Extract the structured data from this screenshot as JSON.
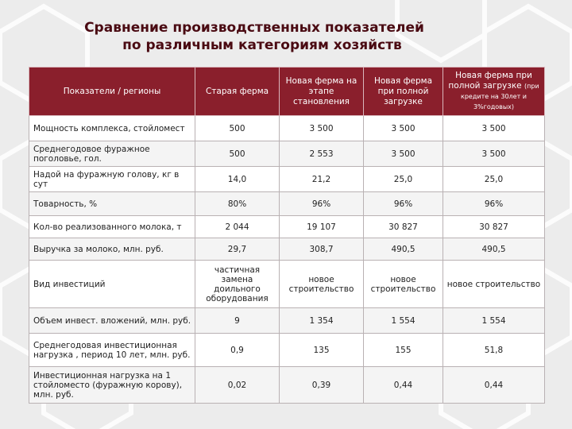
{
  "title": {
    "line1": "Сравнение производственных показателей",
    "line2": "по различным категориям хозяйств"
  },
  "table": {
    "headers": [
      "Показатели / регионы",
      "Старая ферма",
      "Новая ферма на этапе становления",
      "Новая ферма при полной загрузке",
      "Новая ферма при полной загрузке"
    ],
    "header_note": "(при кредите на 30лет и 3%годовых)",
    "rows": [
      [
        "Мощность комплекса, стойломест",
        "500",
        "3 500",
        "3 500",
        "3 500"
      ],
      [
        "Среднегодовое фуражное поголовье, гол.",
        "500",
        "2 553",
        "3 500",
        "3 500"
      ],
      [
        "Надой на фуражную голову, кг в сут",
        "14,0",
        "21,2",
        "25,0",
        "25,0"
      ],
      [
        "Товарность, %",
        "80%",
        "96%",
        "96%",
        "96%"
      ],
      [
        "Кол-во реализованного молока, т",
        "2 044",
        "19 107",
        "30 827",
        "30 827"
      ],
      [
        "Выручка за молоко, млн. руб.",
        "29,7",
        "308,7",
        "490,5",
        "490,5"
      ],
      [
        "Вид инвестиций",
        "частичная замена доильного оборудования",
        "новое строительство",
        "новое строительство",
        "новое строительство"
      ],
      [
        "Объем инвест. вложений, млн. руб.",
        "9",
        "1 354",
        "1 554",
        "1 554"
      ],
      [
        "Среднегодовая инвестиционная нагрузка , период 10 лет, млн. руб.",
        "0,9",
        "135",
        "155",
        "51,8"
      ],
      [
        "Инвестиционная нагрузка на 1 стойломесто (фуражную корову), млн. руб.",
        "0,02",
        "0,39",
        "0,44",
        "0,44"
      ]
    ]
  }
}
